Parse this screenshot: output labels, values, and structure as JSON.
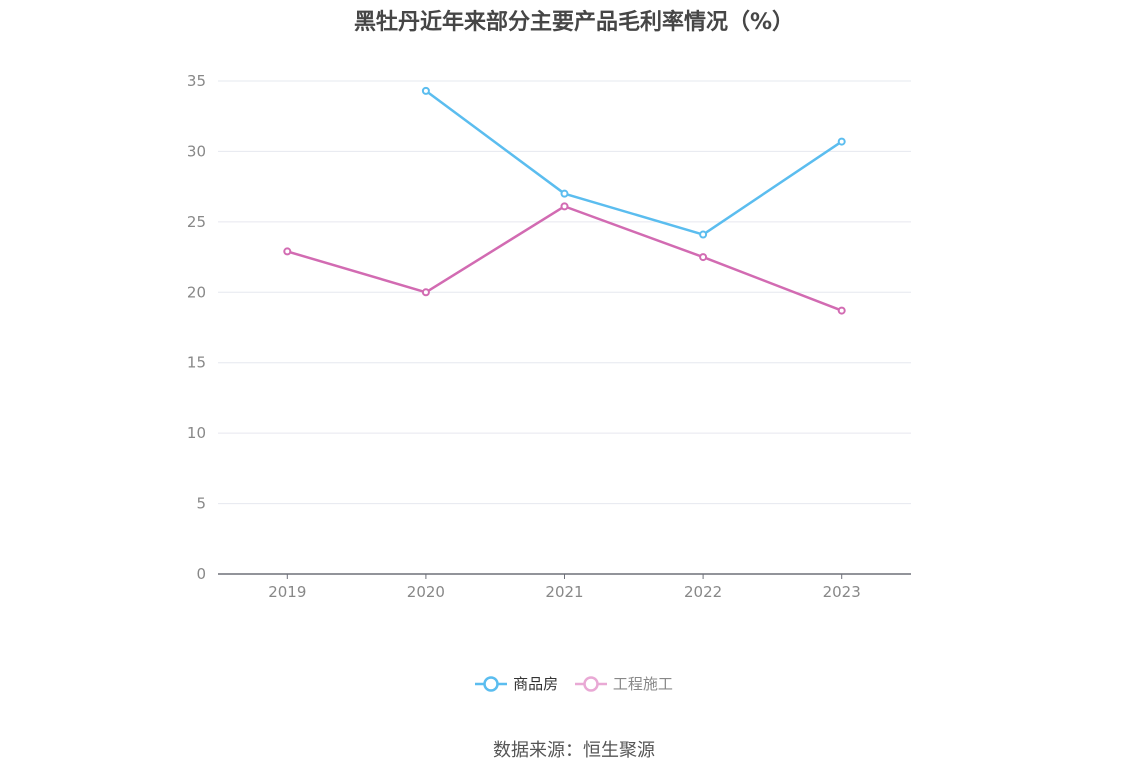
{
  "title": "黑牡丹近年来部分主要产品毛利率情况（%）",
  "source": "数据来源：恒生聚源",
  "colors": {
    "series1": "#5bbdef",
    "series2": "#d26bb2",
    "series2_legend": "#e9a9d5",
    "grid": "#e6e8ef",
    "axis": "#6e7079",
    "tick_text": "#888888"
  },
  "chart_data": {
    "type": "line",
    "title": "黑牡丹近年来部分主要产品毛利率情况（%）",
    "categories": [
      "2019",
      "2020",
      "2021",
      "2022",
      "2023"
    ],
    "y_ticks": [
      "0",
      "5",
      "10",
      "15",
      "20",
      "25",
      "30",
      "35"
    ],
    "ylim": [
      0,
      35
    ],
    "grid": true,
    "legend_position": "bottom-center",
    "series": [
      {
        "name": "商品房",
        "values": [
          null,
          34.3,
          27.0,
          24.1,
          30.7
        ]
      },
      {
        "name": "工程施工",
        "values": [
          22.9,
          20.0,
          26.1,
          22.5,
          18.7
        ]
      }
    ]
  }
}
